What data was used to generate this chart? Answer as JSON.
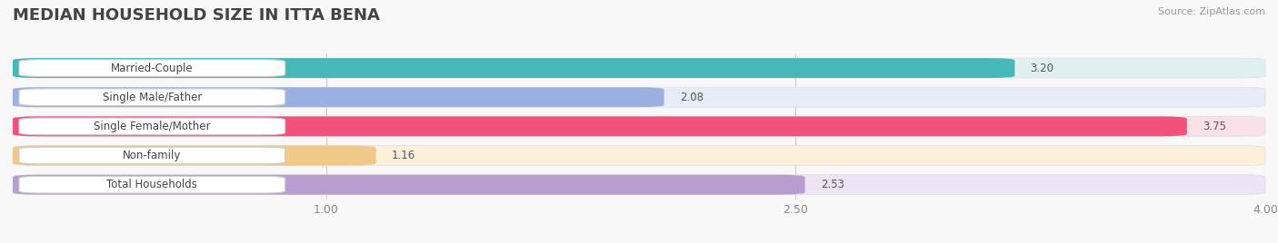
{
  "title": "MEDIAN HOUSEHOLD SIZE IN ITTA BENA",
  "source": "Source: ZipAtlas.com",
  "categories": [
    "Married-Couple",
    "Single Male/Father",
    "Single Female/Mother",
    "Non-family",
    "Total Households"
  ],
  "values": [
    3.2,
    2.08,
    3.75,
    1.16,
    2.53
  ],
  "bar_colors": [
    "#45b8b8",
    "#9ab0e0",
    "#f0507a",
    "#f0c888",
    "#b89ed0"
  ],
  "bar_bg_colors": [
    "#e0f0f0",
    "#e8ecf8",
    "#fce0e8",
    "#fdf0d8",
    "#ece4f4"
  ],
  "label_bg": "#ffffff",
  "xlim": [
    0,
    4.0
  ],
  "xticks": [
    1.0,
    2.5,
    4.0
  ],
  "xtick_labels": [
    "1.00",
    "2.50",
    "4.00"
  ],
  "title_fontsize": 13,
  "label_fontsize": 8.5,
  "value_fontsize": 8.5,
  "background_color": "#f8f8f8",
  "row_bg_color": "#efefef",
  "gap_color": "#ffffff"
}
